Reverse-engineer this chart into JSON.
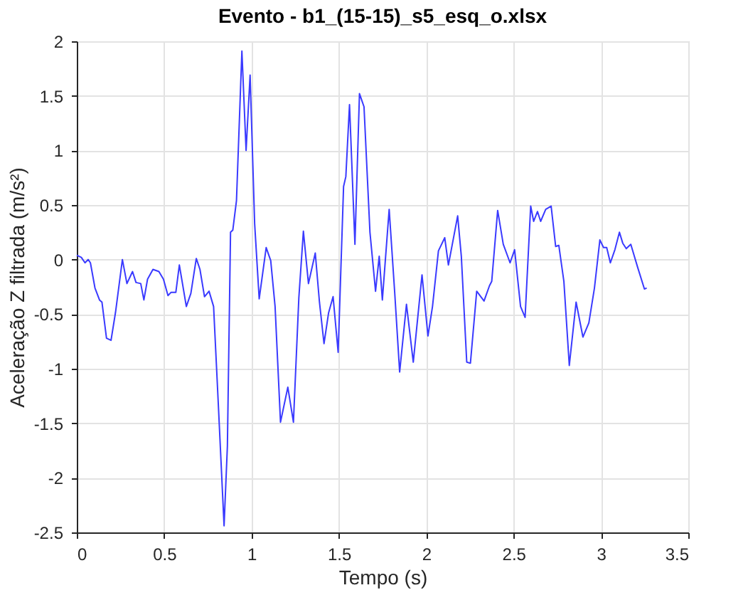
{
  "chart_data": {
    "type": "line",
    "title": "Evento - b1_(15-15)_s5_esq_o.xlsx",
    "xlabel": "Tempo (s)",
    "ylabel": "Aceleração Z filtrada (m/s²)",
    "xlim": [
      0,
      3.5
    ],
    "xticks": [
      0,
      0.5,
      1,
      1.5,
      2,
      2.5,
      3,
      3.5
    ],
    "ylim": [
      -2.5,
      2
    ],
    "yticks": [
      -2.5,
      -2,
      -1.5,
      -1,
      -0.5,
      0,
      0.5,
      1,
      1.5,
      2
    ],
    "grid": true,
    "line_style": "solid",
    "marker": "none",
    "series": [
      {
        "color": "#3a3aff",
        "x": [
          0,
          0.026,
          0.047,
          0.065,
          0.078,
          0.104,
          0.13,
          0.144,
          0.17,
          0.196,
          0.222,
          0.261,
          0.287,
          0.319,
          0.339,
          0.366,
          0.384,
          0.405,
          0.436,
          0.47,
          0.496,
          0.522,
          0.54,
          0.567,
          0.587,
          0.627,
          0.653,
          0.684,
          0.705,
          0.731,
          0.757,
          0.783,
          0.809,
          0.843,
          0.862,
          0.88,
          0.893,
          0.914,
          0.945,
          0.969,
          0.992,
          1.018,
          1.044,
          1.084,
          1.11,
          1.135,
          1.166,
          1.208,
          1.24,
          1.271,
          1.297,
          1.326,
          1.365,
          1.389,
          1.415,
          1.441,
          1.467,
          1.496,
          1.527,
          1.54,
          1.561,
          1.592,
          1.618,
          1.644,
          1.678,
          1.71,
          1.731,
          1.749,
          1.788,
          1.82,
          1.848,
          1.887,
          1.926,
          1.976,
          2.01,
          2.036,
          2.07,
          2.106,
          2.127,
          2.18,
          2.201,
          2.232,
          2.253,
          2.289,
          2.331,
          2.362,
          2.375,
          2.409,
          2.441,
          2.48,
          2.506,
          2.54,
          2.566,
          2.598,
          2.615,
          2.637,
          2.655,
          2.684,
          2.715,
          2.741,
          2.759,
          2.788,
          2.819,
          2.858,
          2.897,
          2.931,
          2.963,
          2.994,
          3.015,
          3.033,
          3.054,
          3.08,
          3.106,
          3.125,
          3.145,
          3.171,
          3.21,
          3.249,
          3.262
        ],
        "values": [
          0.04,
          0.02,
          -0.03,
          0.0,
          -0.03,
          -0.26,
          -0.37,
          -0.39,
          -0.72,
          -0.74,
          -0.48,
          0.0,
          -0.22,
          -0.11,
          -0.21,
          -0.22,
          -0.37,
          -0.18,
          -0.09,
          -0.11,
          -0.18,
          -0.33,
          -0.3,
          -0.3,
          -0.05,
          -0.43,
          -0.31,
          0.01,
          -0.09,
          -0.34,
          -0.29,
          -0.43,
          -1.29,
          -2.44,
          -1.71,
          0.25,
          0.27,
          0.54,
          1.91,
          1.0,
          1.69,
          0.33,
          -0.36,
          0.11,
          -0.01,
          -0.43,
          -1.49,
          -1.17,
          -1.49,
          -0.35,
          0.26,
          -0.22,
          0.06,
          -0.39,
          -0.77,
          -0.49,
          -0.34,
          -0.85,
          0.67,
          0.76,
          1.42,
          0.14,
          1.52,
          1.4,
          0.25,
          -0.29,
          0.03,
          -0.37,
          0.46,
          -0.31,
          -1.03,
          -0.41,
          -0.94,
          -0.14,
          -0.7,
          -0.43,
          0.08,
          0.2,
          -0.05,
          0.4,
          0.03,
          -0.94,
          -0.95,
          -0.29,
          -0.38,
          -0.24,
          -0.2,
          0.45,
          0.14,
          -0.03,
          0.09,
          -0.43,
          -0.53,
          0.49,
          0.35,
          0.44,
          0.35,
          0.46,
          0.49,
          0.12,
          0.13,
          -0.2,
          -0.97,
          -0.39,
          -0.71,
          -0.58,
          -0.26,
          0.18,
          0.11,
          0.11,
          -0.03,
          0.09,
          0.25,
          0.15,
          0.1,
          0.14,
          -0.07,
          -0.27,
          -0.26
        ]
      }
    ]
  }
}
